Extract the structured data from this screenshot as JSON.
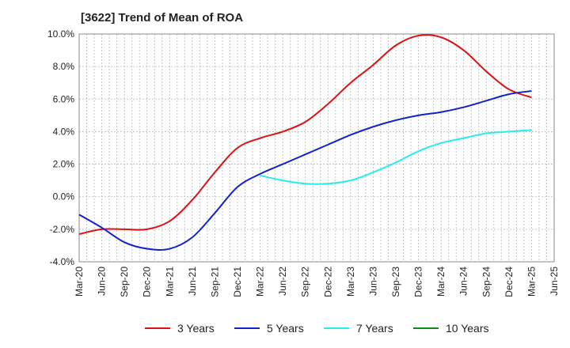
{
  "chart_data": {
    "type": "line",
    "title": "[3622]  Trend of Mean of ROA",
    "y_tick_labels": [
      "-4.0%",
      "-2.0%",
      "0.0%",
      "2.0%",
      "4.0%",
      "6.0%",
      "8.0%",
      "10.0%"
    ],
    "y_ticks": [
      -4,
      -2,
      0,
      2,
      4,
      6,
      8,
      10
    ],
    "ylim": [
      -4,
      10
    ],
    "x_tick_labels": [
      "Mar-20",
      "Jun-20",
      "Sep-20",
      "Dec-20",
      "Mar-21",
      "Jun-21",
      "Sep-21",
      "Dec-21",
      "Mar-22",
      "Jun-22",
      "Sep-22",
      "Dec-22",
      "Mar-23",
      "Jun-23",
      "Sep-23",
      "Dec-23",
      "Mar-24",
      "Jun-24",
      "Sep-24",
      "Dec-24",
      "Mar-25",
      "Jun-25"
    ],
    "grid": true,
    "legend_position": "bottom",
    "series": [
      {
        "name": "3 Years",
        "color": "#dd1111",
        "x": [
          "Mar-20",
          "Jun-20",
          "Sep-20",
          "Dec-20",
          "Mar-21",
          "Jun-21",
          "Sep-21",
          "Dec-21",
          "Mar-22",
          "Jun-22",
          "Sep-22",
          "Dec-22",
          "Mar-23",
          "Jun-23",
          "Sep-23",
          "Dec-23",
          "Mar-24",
          "Jun-24",
          "Sep-24",
          "Dec-24",
          "Mar-25"
        ],
        "values": [
          -2.3,
          -2.0,
          -2.0,
          -2.0,
          -1.5,
          -0.2,
          1.5,
          3.0,
          3.6,
          4.0,
          4.6,
          5.7,
          7.0,
          8.1,
          9.3,
          9.9,
          9.8,
          9.0,
          7.7,
          6.6,
          6.1
        ]
      },
      {
        "name": "5 Years",
        "color": "#1122cc",
        "x": [
          "Mar-20",
          "Jun-20",
          "Sep-20",
          "Dec-20",
          "Mar-21",
          "Jun-21",
          "Sep-21",
          "Dec-21",
          "Mar-22",
          "Jun-22",
          "Sep-22",
          "Dec-22",
          "Mar-23",
          "Jun-23",
          "Sep-23",
          "Dec-23",
          "Mar-24",
          "Jun-24",
          "Sep-24",
          "Dec-24",
          "Mar-25"
        ],
        "values": [
          -1.1,
          -1.9,
          -2.8,
          -3.2,
          -3.2,
          -2.5,
          -1.0,
          0.6,
          1.4,
          2.0,
          2.6,
          3.2,
          3.8,
          4.3,
          4.7,
          5.0,
          5.2,
          5.5,
          5.9,
          6.3,
          6.5
        ]
      },
      {
        "name": "7 Years",
        "color": "#22eeee",
        "x": [
          "Mar-22",
          "Jun-22",
          "Sep-22",
          "Dec-22",
          "Mar-23",
          "Jun-23",
          "Sep-23",
          "Dec-23",
          "Mar-24",
          "Jun-24",
          "Sep-24",
          "Dec-24",
          "Mar-25"
        ],
        "values": [
          1.3,
          1.0,
          0.8,
          0.8,
          1.0,
          1.5,
          2.1,
          2.8,
          3.3,
          3.6,
          3.9,
          4.0,
          4.1
        ]
      },
      {
        "name": "10 Years",
        "color": "#118811",
        "x": [],
        "values": []
      }
    ]
  }
}
